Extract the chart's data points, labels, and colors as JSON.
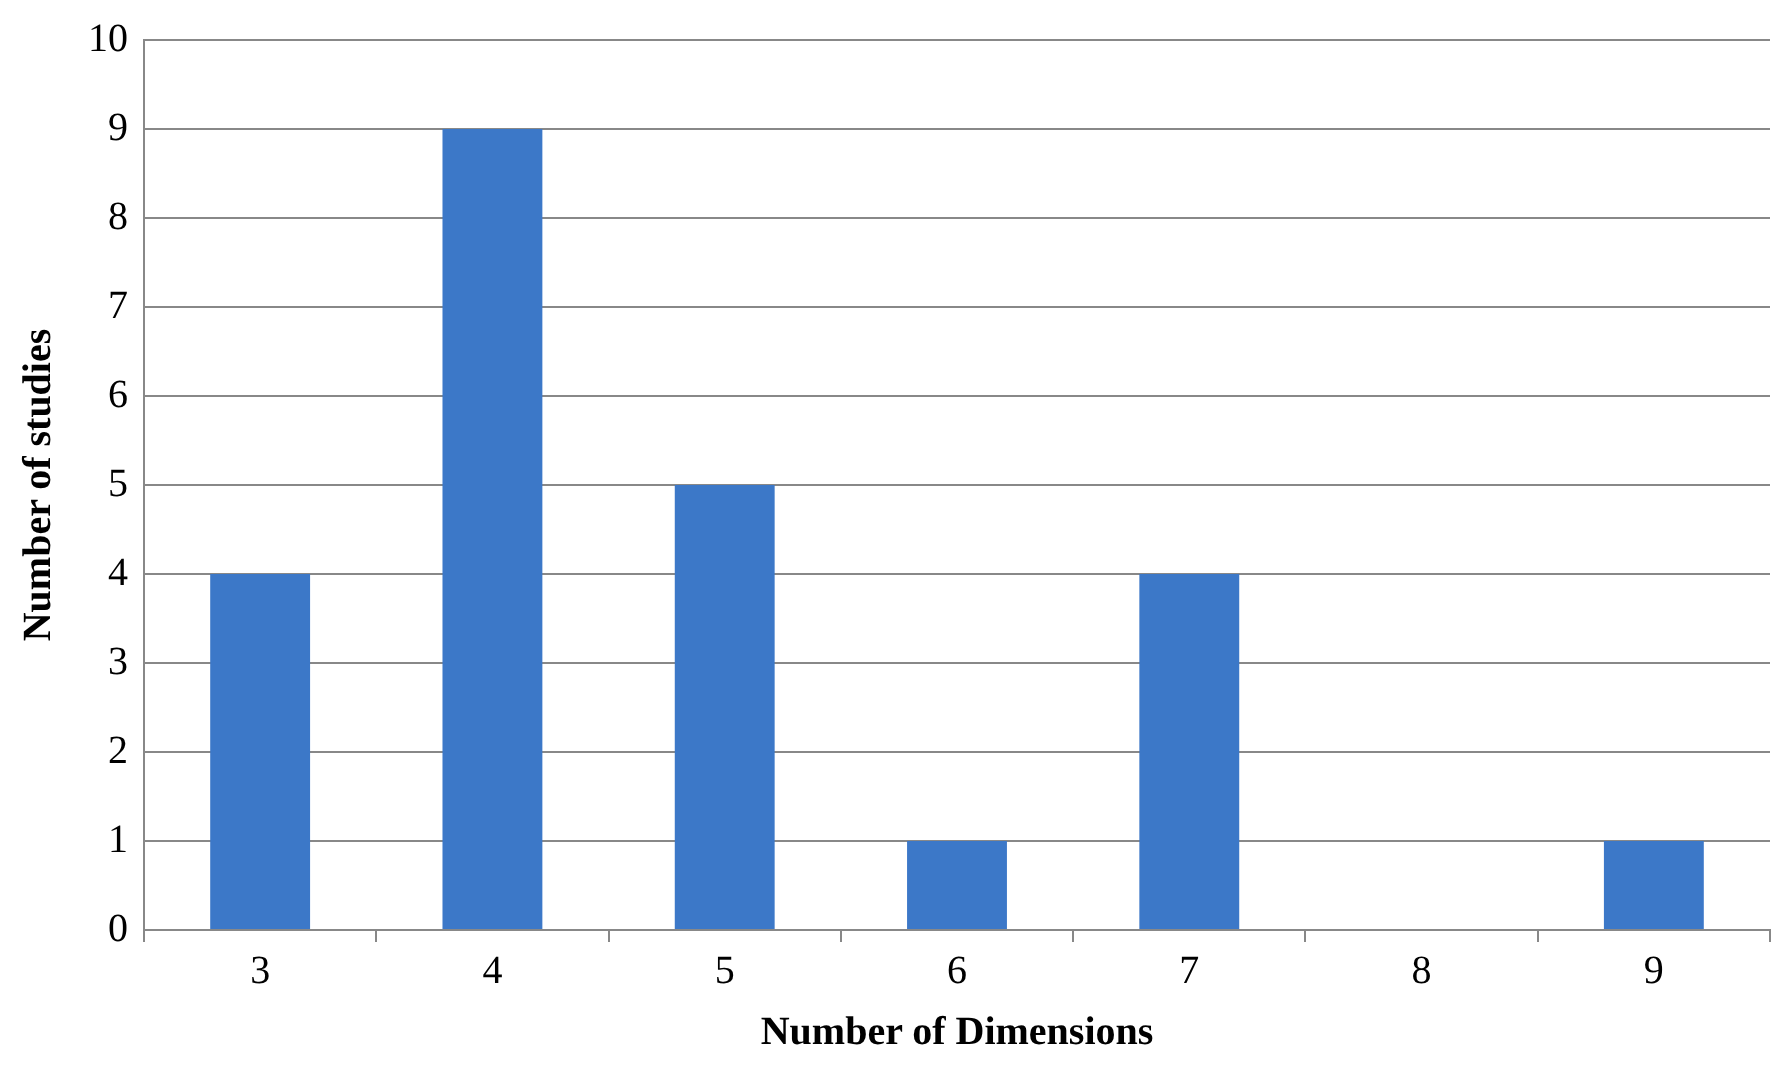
{
  "chart_data": {
    "type": "bar",
    "xlabel": "Number of Dimensions",
    "ylabel": "Number of studies",
    "categories": [
      "3",
      "4",
      "5",
      "6",
      "7",
      "8",
      "9"
    ],
    "values": [
      4,
      9,
      5,
      1,
      4,
      0,
      1
    ],
    "color": "#3c78c8",
    "ylim": [
      0,
      10
    ],
    "yticks": [
      0,
      1,
      2,
      3,
      4,
      5,
      6,
      7,
      8,
      9,
      10
    ],
    "grid": "y",
    "legend": false
  }
}
